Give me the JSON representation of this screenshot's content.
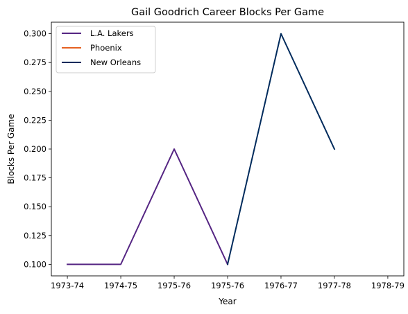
{
  "chart_data": {
    "type": "line",
    "title": "Gail Goodrich Career Blocks Per Game",
    "xlabel": "Year",
    "ylabel": "Blocks Per Game",
    "x_ticks": [
      "1973-74",
      "1974-75",
      "1975-76",
      "1975-76",
      "1976-77",
      "1977-78",
      "1978-79"
    ],
    "xlim": [
      -0.3,
      6.3
    ],
    "ylim": [
      0.09,
      0.31
    ],
    "y_ticks": [
      0.1,
      0.125,
      0.15,
      0.175,
      0.2,
      0.225,
      0.25,
      0.275,
      0.3
    ],
    "grid": false,
    "legend_position": "top-left",
    "series": [
      {
        "name": "L.A. Lakers",
        "color": "#552583",
        "points": [
          [
            0,
            0.1
          ],
          [
            1,
            0.1
          ],
          [
            2,
            0.2
          ],
          [
            3,
            0.1
          ]
        ]
      },
      {
        "name": "Phoenix",
        "color": "#E56020",
        "points": []
      },
      {
        "name": "New Orleans",
        "color": "#002B5C",
        "points": [
          [
            3,
            0.1
          ],
          [
            4,
            0.3
          ],
          [
            5,
            0.2
          ]
        ]
      }
    ]
  }
}
